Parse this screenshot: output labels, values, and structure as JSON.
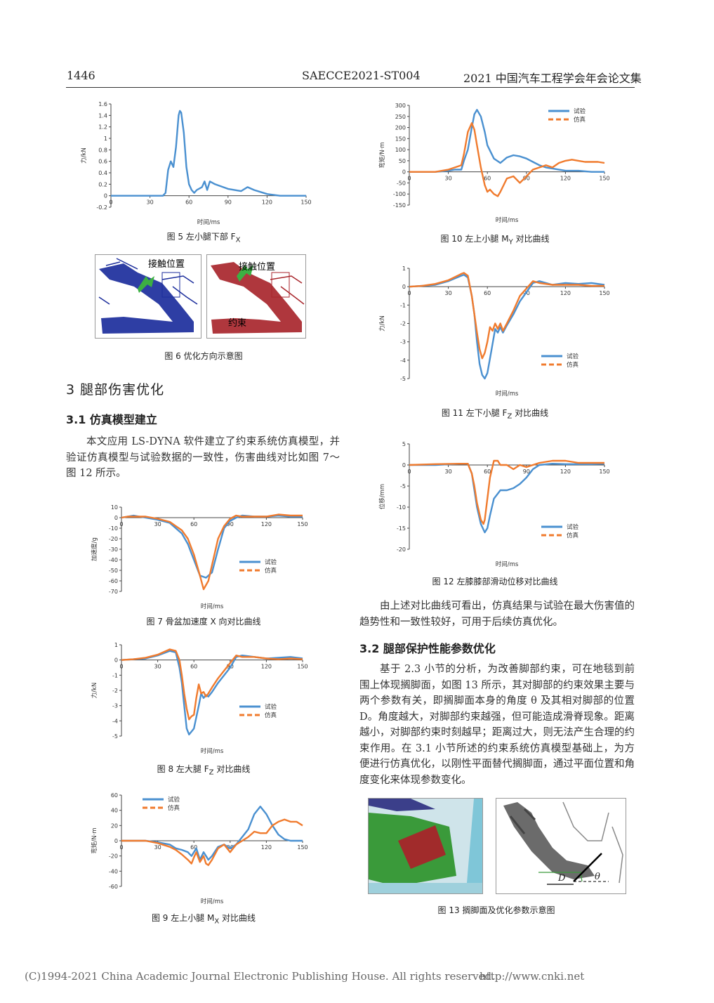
{
  "header": {
    "page_number": "1446",
    "paper_id": "SAECCE2021-ST004",
    "proceedings": "2021 中国汽车工程学会年会论文集"
  },
  "fig5": {
    "caption": "图 5   左小腿下部 F",
    "caption_sub": "X"
  },
  "fig6": {
    "caption": "图 6   优化方向示意图",
    "label_left": "接触位置",
    "label_right": "接触位置",
    "label_restraint": "约束"
  },
  "section3": {
    "title": "3   腿部伤害优化"
  },
  "section31": {
    "title": "3.1   仿真模型建立",
    "paragraph": "本文应用 LS-DYNA 软件建立了约束系统仿真模型，并验证仿真模型与试验数据的一致性，伤害曲线对比如图 7～图 12 所示。"
  },
  "fig7": {
    "caption": "图 7   骨盆加速度 X 向对比曲线"
  },
  "fig8": {
    "caption": "图 8   左大腿 F",
    "caption_sub": "Z",
    "caption_tail": " 对比曲线"
  },
  "fig9": {
    "caption": "图 9   左上小腿 M",
    "caption_sub": "X",
    "caption_tail": " 对比曲线"
  },
  "fig10": {
    "caption": "图 10   左上小腿 M",
    "caption_sub": "Y",
    "caption_tail": " 对比曲线"
  },
  "fig11": {
    "caption": "图 11   左下小腿 F",
    "caption_sub": "Z",
    "caption_tail": " 对比曲线"
  },
  "fig12": {
    "caption": "图 12   左膝膝部滑动位移对比曲线"
  },
  "conclusion": {
    "paragraph": "由上述对比曲线可看出，仿真结果与试验在最大伤害值的趋势性和一致性较好，可用于后续仿真优化。"
  },
  "section32": {
    "title": "3.2   腿部保护性能参数优化",
    "paragraph": "基于 2.3 小节的分析，为改善脚部约束，可在地毯到前围上体现搁脚面，如图 13 所示，其对脚部的约束效果主要与两个参数有关，即搁脚面本身的角度 θ 及其相对脚部的位置 D。角度越大，对脚部约束越强，但可能造成滑脊现象。距离越小，对脚部约束时刻越早；距离过大，则无法产生合理的约束作用。在 3.1 小节所述的约束系统仿真模型基础上，为方便进行仿真优化，以刚性平面替代搁脚面，通过平面位置和角度变化来体现参数变化。"
  },
  "fig13": {
    "caption": "图 13   搁脚面及优化参数示意图",
    "label_D": "D",
    "label_theta": "θ"
  },
  "footer": {
    "copyright": "(C)1994-2021 China Academic Journal Electronic Publishing House. All rights reserved.",
    "url": "http://www.cnki.net"
  },
  "legend": {
    "test": "试验",
    "sim": "仿真"
  },
  "colors": {
    "test": "#4a90d0",
    "sim": "#f07b2e"
  },
  "chart_data": [
    {
      "id": "fig5",
      "type": "line",
      "xlabel": "时间/ms",
      "ylabel": "力/kN",
      "xlim": [
        0,
        150
      ],
      "ylim": [
        -0.2,
        1.6
      ],
      "xticks": [
        0,
        30,
        60,
        90,
        120,
        150
      ],
      "yticks": [
        -0.2,
        0,
        0.2,
        0.4,
        0.6,
        0.8,
        1.0,
        1.2,
        1.4,
        1.6
      ],
      "series": [
        {
          "key": "test",
          "x": [
            0,
            20,
            40,
            42,
            44,
            46,
            48,
            50,
            52,
            53,
            54,
            56,
            58,
            60,
            62,
            64,
            66,
            70,
            72,
            74,
            76,
            80,
            90,
            100,
            105,
            110,
            120,
            130,
            140,
            150
          ],
          "y": [
            0,
            0,
            0,
            0.05,
            0.45,
            0.6,
            0.5,
            0.85,
            1.4,
            1.48,
            1.45,
            1.1,
            0.5,
            0.2,
            0.1,
            0.05,
            0.1,
            0.15,
            0.25,
            0.1,
            0.25,
            0.2,
            0.12,
            0.08,
            0.15,
            0.1,
            0.03,
            0,
            0,
            0
          ]
        }
      ]
    },
    {
      "id": "fig7",
      "type": "line",
      "xlabel": "时间/ms",
      "ylabel": "加速度/g",
      "xlim": [
        0,
        150
      ],
      "ylim": [
        -70,
        10
      ],
      "xticks": [
        0,
        30,
        60,
        90,
        120,
        150
      ],
      "yticks": [
        10,
        0,
        -10,
        -20,
        -30,
        -40,
        -50,
        -60,
        -70
      ],
      "series": [
        {
          "key": "test",
          "x": [
            0,
            5,
            10,
            20,
            30,
            40,
            50,
            55,
            60,
            65,
            70,
            75,
            80,
            85,
            90,
            95,
            100,
            110,
            120,
            130,
            140,
            150
          ],
          "y": [
            0,
            1,
            2,
            0,
            -2,
            -5,
            -15,
            -25,
            -40,
            -55,
            -57,
            -52,
            -30,
            -10,
            -3,
            0,
            2,
            1,
            1,
            2,
            1,
            1
          ]
        },
        {
          "key": "sim",
          "x": [
            0,
            5,
            10,
            20,
            30,
            40,
            50,
            55,
            60,
            65,
            68,
            72,
            76,
            80,
            85,
            90,
            95,
            100,
            110,
            120,
            130,
            140,
            150
          ],
          "y": [
            0,
            1,
            1,
            1,
            -1,
            -4,
            -12,
            -20,
            -35,
            -55,
            -68,
            -60,
            -40,
            -20,
            -8,
            -1,
            2,
            1,
            1,
            1,
            3,
            2,
            2
          ]
        }
      ]
    },
    {
      "id": "fig8",
      "type": "line",
      "xlabel": "时间/ms",
      "ylabel": "力/kN",
      "xlim": [
        0,
        150
      ],
      "ylim": [
        -5,
        1
      ],
      "xticks": [
        0,
        30,
        60,
        90,
        120,
        150
      ],
      "yticks": [
        1,
        0,
        -1,
        -2,
        -3,
        -4,
        -5
      ],
      "series": [
        {
          "key": "test",
          "x": [
            0,
            10,
            20,
            30,
            40,
            45,
            48,
            50,
            52,
            54,
            56,
            58,
            60,
            64,
            66,
            68,
            70,
            72,
            75,
            80,
            90,
            95,
            100,
            110,
            120,
            130,
            140,
            150
          ],
          "y": [
            0,
            0.05,
            0.1,
            0.3,
            0.6,
            0.5,
            -0.5,
            -1.5,
            -3,
            -4.5,
            -4.9,
            -4.7,
            -4.5,
            -3,
            -2.2,
            -2.5,
            -2.3,
            -2.4,
            -2.1,
            -1.5,
            -0.5,
            0.2,
            0.3,
            0.2,
            0.1,
            0.15,
            0.2,
            0.1
          ]
        },
        {
          "key": "sim",
          "x": [
            0,
            10,
            20,
            30,
            40,
            45,
            48,
            50,
            52,
            54,
            56,
            58,
            60,
            62,
            64,
            66,
            68,
            70,
            72,
            75,
            80,
            90,
            95,
            100,
            110,
            120,
            130,
            140,
            150
          ],
          "y": [
            0,
            0.05,
            0.15,
            0.35,
            0.7,
            0.6,
            0,
            -1,
            -2.2,
            -3.2,
            -3.9,
            -3.7,
            -3.6,
            -2.5,
            -1.6,
            -2.2,
            -2.1,
            -2.4,
            -2.2,
            -1.8,
            -1.2,
            -0.2,
            0.3,
            0.2,
            0.2,
            0.1,
            0.05,
            0.1,
            0.05
          ]
        }
      ]
    },
    {
      "id": "fig9",
      "type": "line",
      "xlabel": "时间/ms",
      "ylabel": "弯矩/N·m",
      "xlim": [
        0,
        150
      ],
      "ylim": [
        -60,
        60
      ],
      "xticks": [
        0,
        30,
        60,
        90,
        120,
        150
      ],
      "yticks": [
        60,
        40,
        20,
        0,
        -20,
        -40,
        -60
      ],
      "series": [
        {
          "key": "test",
          "x": [
            0,
            10,
            20,
            30,
            40,
            45,
            50,
            55,
            58,
            60,
            62,
            65,
            68,
            70,
            72,
            75,
            80,
            85,
            90,
            95,
            100,
            105,
            110,
            115,
            120,
            125,
            130,
            135,
            140,
            150
          ],
          "y": [
            0,
            0,
            0,
            -2,
            -5,
            -10,
            -12,
            -15,
            -20,
            -15,
            -10,
            -25,
            -15,
            -20,
            -25,
            -20,
            -8,
            -5,
            -10,
            -5,
            5,
            15,
            35,
            45,
            35,
            20,
            8,
            2,
            0,
            0
          ]
        },
        {
          "key": "sim",
          "x": [
            0,
            10,
            20,
            30,
            40,
            45,
            50,
            55,
            58,
            60,
            62,
            65,
            68,
            70,
            72,
            75,
            80,
            85,
            90,
            95,
            100,
            105,
            110,
            115,
            120,
            125,
            130,
            135,
            140,
            145,
            150
          ],
          "y": [
            0,
            0,
            0,
            -3,
            -8,
            -12,
            -18,
            -25,
            -30,
            -22,
            -15,
            -28,
            -20,
            -30,
            -32,
            -25,
            -10,
            -5,
            -15,
            -5,
            0,
            5,
            12,
            10,
            10,
            20,
            25,
            28,
            25,
            25,
            20
          ]
        }
      ]
    },
    {
      "id": "fig10",
      "type": "line",
      "xlabel": "时间/ms",
      "ylabel": "弯矩/N·m",
      "xlim": [
        0,
        150
      ],
      "ylim": [
        -150,
        300
      ],
      "xticks": [
        0,
        30,
        60,
        90,
        120,
        150
      ],
      "yticks": [
        300,
        250,
        200,
        150,
        100,
        50,
        0,
        -50,
        -100,
        -150
      ],
      "legend": "top-right",
      "series": [
        {
          "key": "test",
          "x": [
            0,
            10,
            20,
            30,
            35,
            40,
            42,
            45,
            48,
            50,
            52,
            55,
            58,
            60,
            65,
            70,
            75,
            80,
            85,
            90,
            95,
            100,
            105,
            110,
            120,
            130,
            140,
            150
          ],
          "y": [
            0,
            0,
            0,
            5,
            10,
            10,
            50,
            100,
            200,
            260,
            280,
            250,
            180,
            120,
            60,
            40,
            65,
            75,
            70,
            60,
            45,
            30,
            20,
            15,
            5,
            5,
            0,
            0
          ]
        },
        {
          "key": "sim",
          "x": [
            0,
            10,
            20,
            30,
            35,
            40,
            42,
            45,
            48,
            50,
            52,
            55,
            58,
            60,
            62,
            65,
            68,
            70,
            75,
            80,
            85,
            90,
            95,
            100,
            105,
            110,
            115,
            120,
            125,
            130,
            135,
            140,
            145,
            150
          ],
          "y": [
            0,
            0,
            0,
            10,
            20,
            30,
            80,
            180,
            220,
            190,
            120,
            20,
            -60,
            -90,
            -80,
            -100,
            -110,
            -90,
            -30,
            -20,
            -50,
            -20,
            10,
            20,
            30,
            20,
            40,
            50,
            55,
            50,
            45,
            45,
            45,
            40
          ]
        }
      ]
    },
    {
      "id": "fig11",
      "type": "line",
      "xlabel": "时间/ms",
      "ylabel": "力/kN",
      "xlim": [
        0,
        150
      ],
      "ylim": [
        -5,
        1
      ],
      "xticks": [
        0,
        30,
        60,
        90,
        120,
        150
      ],
      "yticks": [
        1,
        0,
        -1,
        -2,
        -3,
        -4,
        -5
      ],
      "legend": "bottom-right",
      "series": [
        {
          "key": "test",
          "x": [
            0,
            10,
            20,
            30,
            40,
            42,
            45,
            48,
            50,
            52,
            54,
            56,
            58,
            60,
            63,
            66,
            68,
            70,
            72,
            75,
            80,
            85,
            90,
            95,
            100,
            110,
            120,
            130,
            140,
            150
          ],
          "y": [
            0,
            0.05,
            0.1,
            0.3,
            0.6,
            0.65,
            0.5,
            -0.5,
            -1.5,
            -3,
            -4.2,
            -4.8,
            -5,
            -4.7,
            -3.5,
            -2.3,
            -2.5,
            -2.2,
            -2.5,
            -2.1,
            -1.5,
            -0.8,
            -0.3,
            0.2,
            0.3,
            0.1,
            0.2,
            0.15,
            0.2,
            0.1
          ]
        },
        {
          "key": "sim",
          "x": [
            0,
            10,
            20,
            30,
            40,
            42,
            45,
            48,
            50,
            52,
            54,
            56,
            58,
            60,
            62,
            64,
            66,
            68,
            70,
            72,
            75,
            80,
            85,
            90,
            95,
            100,
            110,
            120,
            130,
            140,
            150
          ],
          "y": [
            0,
            0.05,
            0.15,
            0.35,
            0.7,
            0.75,
            0.6,
            -0.5,
            -1.5,
            -2.5,
            -3.4,
            -3.9,
            -3.6,
            -3,
            -2.2,
            -2.4,
            -2,
            -2.3,
            -2,
            -2.4,
            -2,
            -1.3,
            -0.5,
            -0.1,
            0.3,
            0.2,
            0.1,
            0.1,
            0.1,
            0.05,
            0.05
          ]
        }
      ]
    },
    {
      "id": "fig12",
      "type": "line",
      "xlabel": "时间/ms",
      "ylabel": "位移/mm",
      "xlim": [
        0,
        150
      ],
      "ylim": [
        -20,
        5
      ],
      "xticks": [
        0,
        30,
        60,
        90,
        120,
        150
      ],
      "yticks": [
        5,
        0,
        -5,
        -10,
        -15,
        -20
      ],
      "legend": "bottom-right",
      "series": [
        {
          "key": "test",
          "x": [
            0,
            20,
            40,
            45,
            48,
            50,
            52,
            55,
            58,
            60,
            62,
            65,
            70,
            75,
            80,
            85,
            90,
            95,
            100,
            110,
            120,
            130,
            140,
            150
          ],
          "y": [
            0,
            0,
            0.3,
            0.3,
            -2,
            -6,
            -10,
            -14,
            -16,
            -15,
            -12,
            -8,
            -6,
            -6,
            -5.5,
            -4.5,
            -3,
            -1,
            0,
            0.3,
            0.2,
            0.2,
            0.2,
            0.3
          ]
        },
        {
          "key": "sim",
          "x": [
            0,
            20,
            40,
            45,
            48,
            50,
            52,
            55,
            57,
            58,
            60,
            62,
            65,
            68,
            70,
            75,
            80,
            85,
            90,
            100,
            110,
            120,
            130,
            140,
            150
          ],
          "y": [
            0,
            0.2,
            0.3,
            0.3,
            -2,
            -5,
            -9,
            -13,
            -14,
            -13,
            -8,
            -3,
            1,
            1,
            0,
            0,
            -1,
            0,
            -0.5,
            0.5,
            1,
            1,
            0.5,
            0.5,
            0.5
          ]
        }
      ]
    }
  ]
}
